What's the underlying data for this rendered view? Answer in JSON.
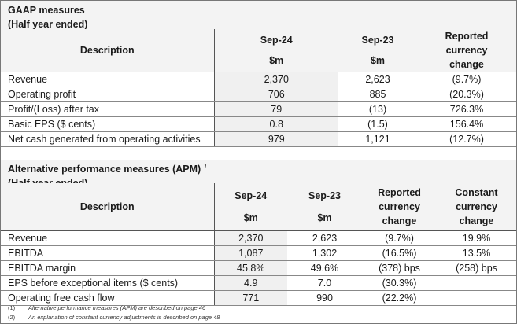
{
  "gaap": {
    "title": "GAAP measures",
    "subtitle": "(Half year ended)",
    "headers": {
      "desc": "Description",
      "c1": "Sep-24",
      "c1u": "$m",
      "c2": "Sep-23",
      "c2u": "$m",
      "c3a": "Reported",
      "c3b": "currency",
      "c3c": "change"
    },
    "rows": [
      [
        "Revenue",
        "2,370",
        "2,623",
        "(9.7%)"
      ],
      [
        "Operating profit",
        "706",
        "885",
        "(20.3%)"
      ],
      [
        "Profit/(Loss) after tax",
        "79",
        "(13)",
        "726.3%"
      ],
      [
        "Basic EPS ($ cents)",
        "0.8",
        "(1.5)",
        "156.4%"
      ],
      [
        "Net cash generated from operating activities",
        "979",
        "1,121",
        "(12.7%)"
      ]
    ]
  },
  "apm": {
    "title": "Alternative performance measures (APM)",
    "sup": "1",
    "subtitle": "(Half year ended)",
    "headers": {
      "desc": "Description",
      "c1": "Sep-24",
      "c1u": "$m",
      "c2": "Sep-23",
      "c2u": "$m",
      "c3a": "Reported",
      "c3b": "currency",
      "c3c": "change",
      "c4a": "Constant",
      "c4b": "currency",
      "c4c": "change"
    },
    "rows": [
      [
        "Revenue",
        "2,370",
        "2,623",
        "(9.7%)",
        "19.9%"
      ],
      [
        "EBITDA",
        "1,087",
        "1,302",
        "(16.5%)",
        "13.5%"
      ],
      [
        "EBITDA margin",
        "45.8%",
        "49.6%",
        "(378) bps",
        "(258) bps"
      ],
      [
        "EPS before exceptional items ($ cents)",
        "4.9",
        "7.0",
        "(30.3%)",
        ""
      ],
      [
        "Operating free cash flow",
        "771",
        "990",
        "(22.2%)",
        ""
      ]
    ]
  },
  "footnotes": [
    {
      "n": "(1)",
      "text": "Alternative performance measures (APM) are described on page 46"
    },
    {
      "n": "(2)",
      "text": "An explanation of constant currency adjustments is described on page 48"
    }
  ]
}
